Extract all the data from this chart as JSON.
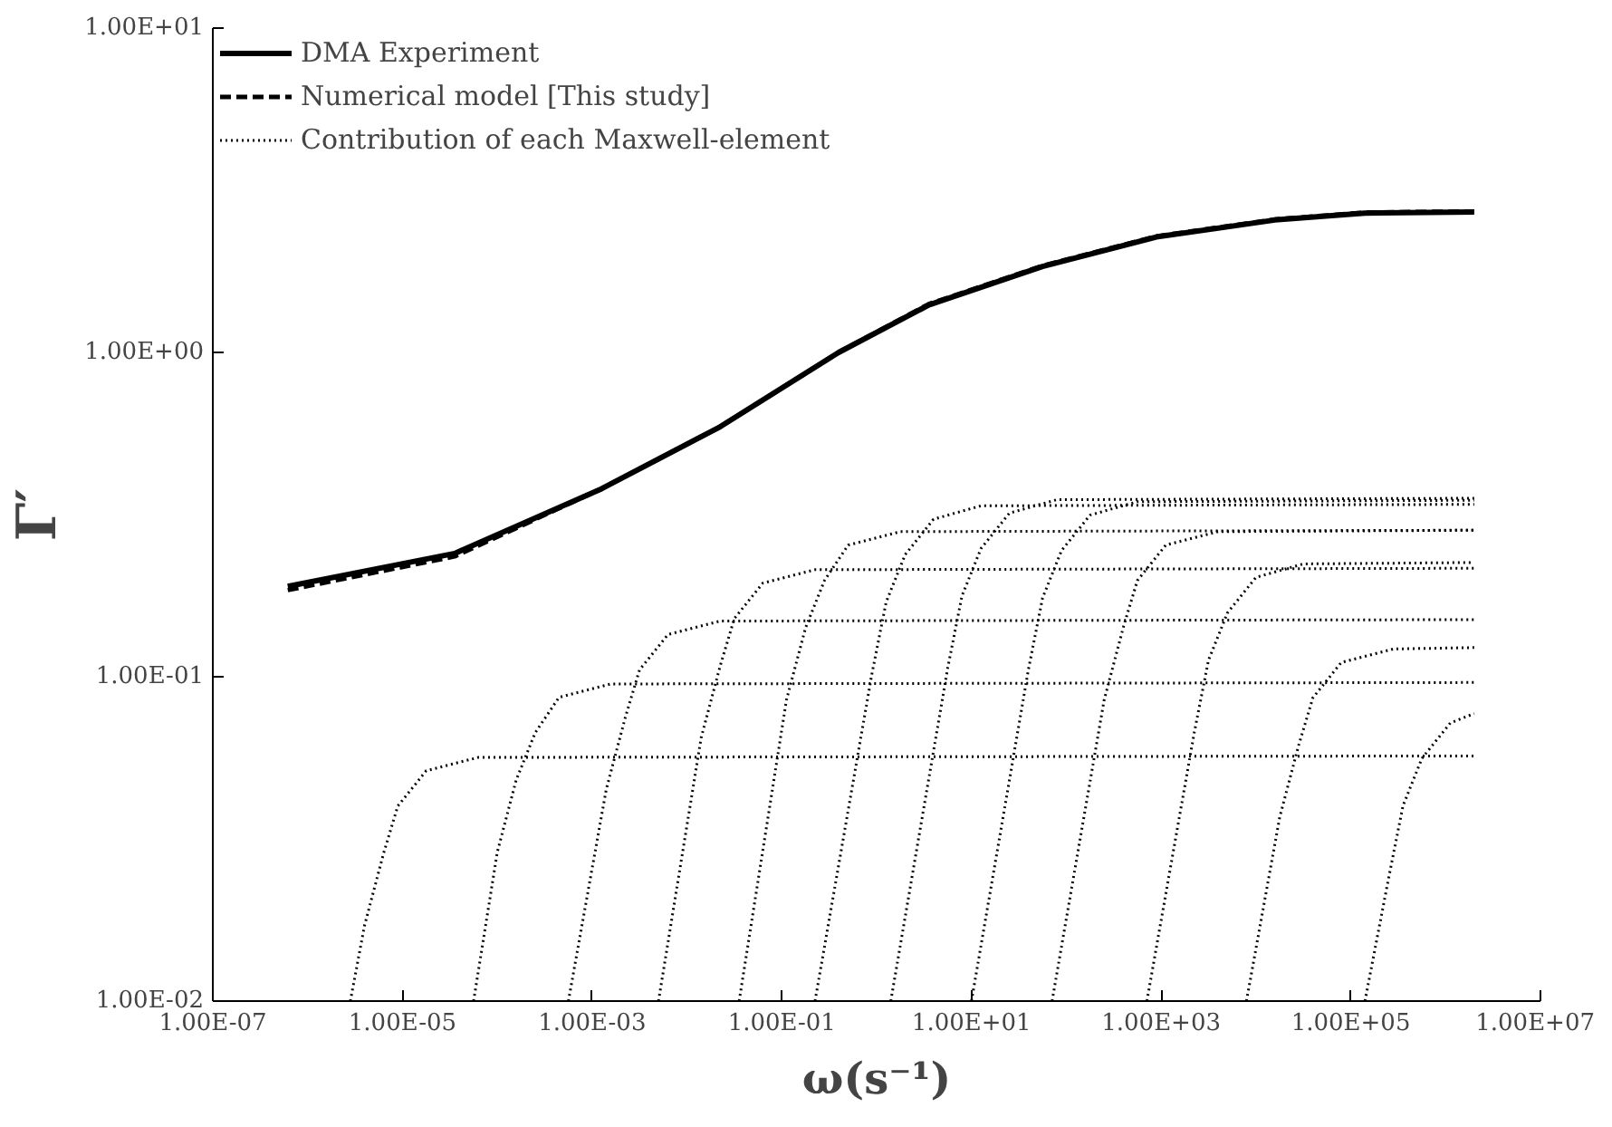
{
  "chart_data": {
    "type": "line",
    "xlabel": "ω(s⁻¹)",
    "ylabel": "Γ′",
    "log": "xy",
    "grid": false,
    "legend": "top left",
    "marker": "none",
    "xlim": [
      1e-07,
      10000000.0
    ],
    "ylim": [
      0.01,
      10
    ],
    "xticks": [
      {
        "value": 1e-07,
        "label": "1.00E-07"
      },
      {
        "value": 1e-05,
        "label": "1.00E-05"
      },
      {
        "value": 0.001,
        "label": "1.00E-03"
      },
      {
        "value": 0.1,
        "label": "1.00E-01"
      },
      {
        "value": 10,
        "label": "1.00E+01"
      },
      {
        "value": 1000,
        "label": "1.00E+03"
      },
      {
        "value": 100000,
        "label": "1.00E+05"
      },
      {
        "value": 10000000,
        "label": "1.00E+07"
      }
    ],
    "yticks": [
      {
        "value": 0.01,
        "label": "1.00E-02"
      },
      {
        "value": 0.1,
        "label": "1.00E-01"
      },
      {
        "value": 1,
        "label": "1.00E+00"
      },
      {
        "value": 10,
        "label": "1.00E+01"
      }
    ],
    "series": [
      {
        "name": "DMA Experiment",
        "color": "#000000",
        "line_style": "solid",
        "x": [
          6.17e-07,
          3.55e-05,
          0.00126,
          0.0224,
          0.398,
          3.55,
          56.2,
          891,
          15800,
          141000,
          2000000
        ],
        "values": [
          0.19,
          0.24,
          0.38,
          0.59,
          1.0,
          1.4,
          1.84,
          2.27,
          2.56,
          2.69,
          2.71
        ]
      },
      {
        "name": "Numerical model [This study]",
        "color": "#000000",
        "line_style": "dashed",
        "x": [
          6.17e-07,
          3.55e-05,
          0.00126,
          0.0224,
          0.398,
          3.55,
          56.2,
          891,
          15800,
          141000,
          2000000
        ],
        "values": [
          0.185,
          0.235,
          0.38,
          0.59,
          1.0,
          1.41,
          1.85,
          2.28,
          2.57,
          2.7,
          2.72
        ]
      },
      {
        "name": "Contribution of each Maxwell-element",
        "color": "#000000",
        "line_style": "dotted",
        "x": [
          2.82e-06,
          3.98e-06,
          6.31e-06,
          8.91e-06,
          1.78e-05,
          6.31e-05,
          2000000
        ],
        "values": [
          0.01,
          0.0171,
          0.0285,
          0.0399,
          0.0513,
          0.0564,
          0.057
        ]
      },
      {
        "color": "#000000",
        "line_style": "dotted",
        "x": [
          5.62e-05,
          0.0001,
          0.000158,
          0.000251,
          0.000447,
          0.00158,
          2000000
        ],
        "values": [
          0.01,
          0.0288,
          0.048,
          0.0672,
          0.0864,
          0.095,
          0.096
        ]
      },
      {
        "color": "#000000",
        "line_style": "dotted",
        "x": [
          0.000562,
          0.00141,
          0.00224,
          0.00316,
          0.00631,
          0.0224,
          2000000
        ],
        "values": [
          0.01,
          0.045,
          0.075,
          0.105,
          0.135,
          0.1485,
          0.15
        ]
      },
      {
        "color": "#000000",
        "line_style": "dotted",
        "x": [
          0.00501,
          0.0141,
          0.0224,
          0.0316,
          0.0631,
          0.224,
          2000000
        ],
        "values": [
          0.01,
          0.0648,
          0.108,
          0.1512,
          0.1944,
          0.2138,
          0.216
        ]
      },
      {
        "color": "#000000",
        "line_style": "dotted",
        "x": [
          0.0355,
          0.112,
          0.178,
          0.282,
          0.501,
          1.78,
          2000000
        ],
        "values": [
          0.01,
          0.0849,
          0.1415,
          0.1981,
          0.2547,
          0.2802,
          0.283
        ]
      },
      {
        "color": "#000000",
        "line_style": "dotted",
        "x": [
          0.224,
          0.891,
          1.26,
          2.0,
          3.98,
          12.6,
          2000000
        ],
        "values": [
          0.01,
          0.102,
          0.17,
          0.238,
          0.306,
          0.3366,
          0.34
        ]
      },
      {
        "color": "#000000",
        "line_style": "dotted",
        "x": [
          1.41,
          5.62,
          7.94,
          12.6,
          25.1,
          79.4,
          2000000
        ],
        "values": [
          0.01,
          0.1065,
          0.1775,
          0.2485,
          0.3195,
          0.3515,
          0.355
        ]
      },
      {
        "color": "#000000",
        "line_style": "dotted",
        "x": [
          10,
          39.8,
          56.2,
          89.1,
          178,
          562,
          2000000
        ],
        "values": [
          0.01,
          0.105,
          0.175,
          0.245,
          0.315,
          0.3465,
          0.35
        ]
      },
      {
        "color": "#000000",
        "line_style": "dotted",
        "x": [
          70.8,
          251,
          398,
          562,
          1120,
          3980,
          2000000
        ],
        "values": [
          0.01,
          0.0849,
          0.1415,
          0.1981,
          0.2547,
          0.2802,
          0.283
        ]
      },
      {
        "color": "#000000",
        "line_style": "dotted",
        "x": [
          708,
          2240,
          3160,
          5010,
          10000,
          31600,
          2000000
        ],
        "values": [
          0.01,
          0.0675,
          0.1125,
          0.1575,
          0.2025,
          0.2228,
          0.225
        ]
      },
      {
        "color": "#000000",
        "line_style": "dotted",
        "x": [
          7940,
          17800,
          28200,
          39800,
          79400,
          282000,
          2000000
        ],
        "values": [
          0.01,
          0.0369,
          0.0615,
          0.0861,
          0.1107,
          0.1218,
          0.123
        ]
      },
      {
        "color": "#000000",
        "line_style": "dotted",
        "x": [
          141000,
          251000,
          355000,
          562000,
          1120000,
          2000000
        ],
        "values": [
          0.01,
          0.024,
          0.04,
          0.056,
          0.072,
          0.077
        ]
      }
    ]
  }
}
